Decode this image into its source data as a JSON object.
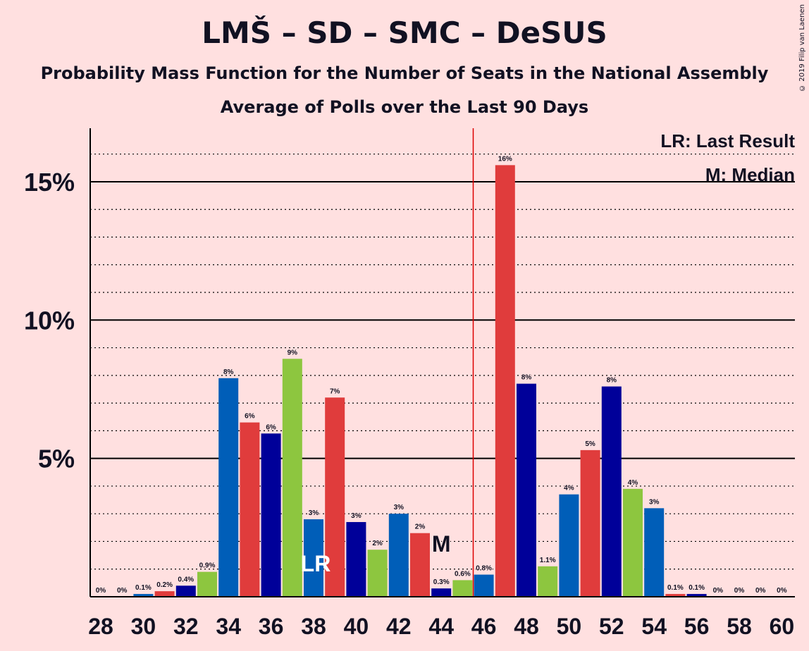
{
  "title": "LMŠ – SD – SMC – DeSUS",
  "subtitle": "Probability Mass Function for the Number of Seats in the National Assembly",
  "subtitle2": "Average of Polls over the Last 90 Days",
  "copyright": "© 2019 Filip van Laenen",
  "legend": {
    "lr": "LR: Last Result",
    "m": "M: Median"
  },
  "colors": {
    "background": "#ffe0e0",
    "majority_line": "#dd0000",
    "series": [
      "#000099",
      "#8dc63f",
      "#005eb8",
      "#e03c3c"
    ]
  },
  "chart_data": {
    "type": "bar",
    "xlim": [
      28,
      60
    ],
    "ylim": [
      0,
      17
    ],
    "x_ticks": [
      "28",
      "30",
      "32",
      "34",
      "36",
      "38",
      "40",
      "42",
      "44",
      "46",
      "48",
      "50",
      "52",
      "54",
      "56",
      "58",
      "60"
    ],
    "y_ticks": [
      {
        "value": 5,
        "label": "5%"
      },
      {
        "value": 10,
        "label": "10%"
      },
      {
        "value": 15,
        "label": "15%"
      }
    ],
    "majority_seat": 45.5,
    "last_result_seat": 38,
    "last_result_label": "LR",
    "median_seat": 44,
    "median_label": "M",
    "x": [
      28,
      29,
      30,
      31,
      32,
      33,
      34,
      35,
      36,
      37,
      38,
      39,
      40,
      41,
      42,
      43,
      44,
      45,
      46,
      47,
      48,
      49,
      50,
      51,
      52,
      53,
      54,
      55,
      56,
      57,
      58,
      59,
      60
    ],
    "values": [
      0,
      0,
      0.1,
      0.2,
      0.4,
      0.9,
      7.9,
      6.3,
      5.9,
      8.6,
      2.8,
      7.2,
      2.7,
      1.7,
      3.0,
      2.3,
      0.3,
      0.6,
      0.8,
      15.6,
      7.7,
      1.1,
      3.7,
      5.3,
      7.6,
      3.9,
      3.2,
      0.1,
      0.1,
      0,
      0,
      0,
      0
    ],
    "labels": [
      "0%",
      "0%",
      "0.1%",
      "0.2%",
      "0.4%",
      "0.9%",
      "8%",
      "6%",
      "6%",
      "9%",
      "3%",
      "7%",
      "3%",
      "2%",
      "3%",
      "2%",
      "0.3%",
      "0.6%",
      "0.8%",
      "16%",
      "8%",
      "1.1%",
      "4%",
      "5%",
      "8%",
      "4%",
      "3%",
      "0.1%",
      "0.1%",
      "0%",
      "0%",
      "0%",
      "0%"
    ]
  }
}
